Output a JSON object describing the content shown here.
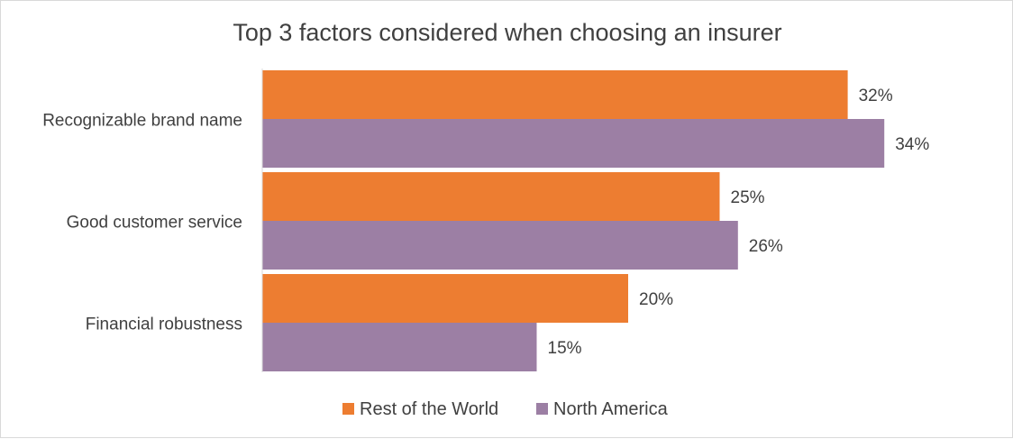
{
  "chart_data": {
    "type": "bar",
    "orientation": "horizontal",
    "title": "Top 3 factors considered when choosing an insurer",
    "categories": [
      "Recognizable brand name",
      "Good customer service",
      "Financial robustness"
    ],
    "series": [
      {
        "name": "Rest of the World",
        "color": "#ED7D31",
        "values": [
          32,
          25,
          20
        ],
        "labels": [
          "32%",
          "25%",
          "20%"
        ]
      },
      {
        "name": "North America",
        "color": "#9C7FA4",
        "values": [
          34,
          26,
          15
        ],
        "labels": [
          "34%",
          "26%",
          "15%"
        ]
      }
    ],
    "xlim": [
      0,
      40
    ],
    "xlabel": "",
    "ylabel": "",
    "grid": false,
    "legend_position": "bottom"
  }
}
